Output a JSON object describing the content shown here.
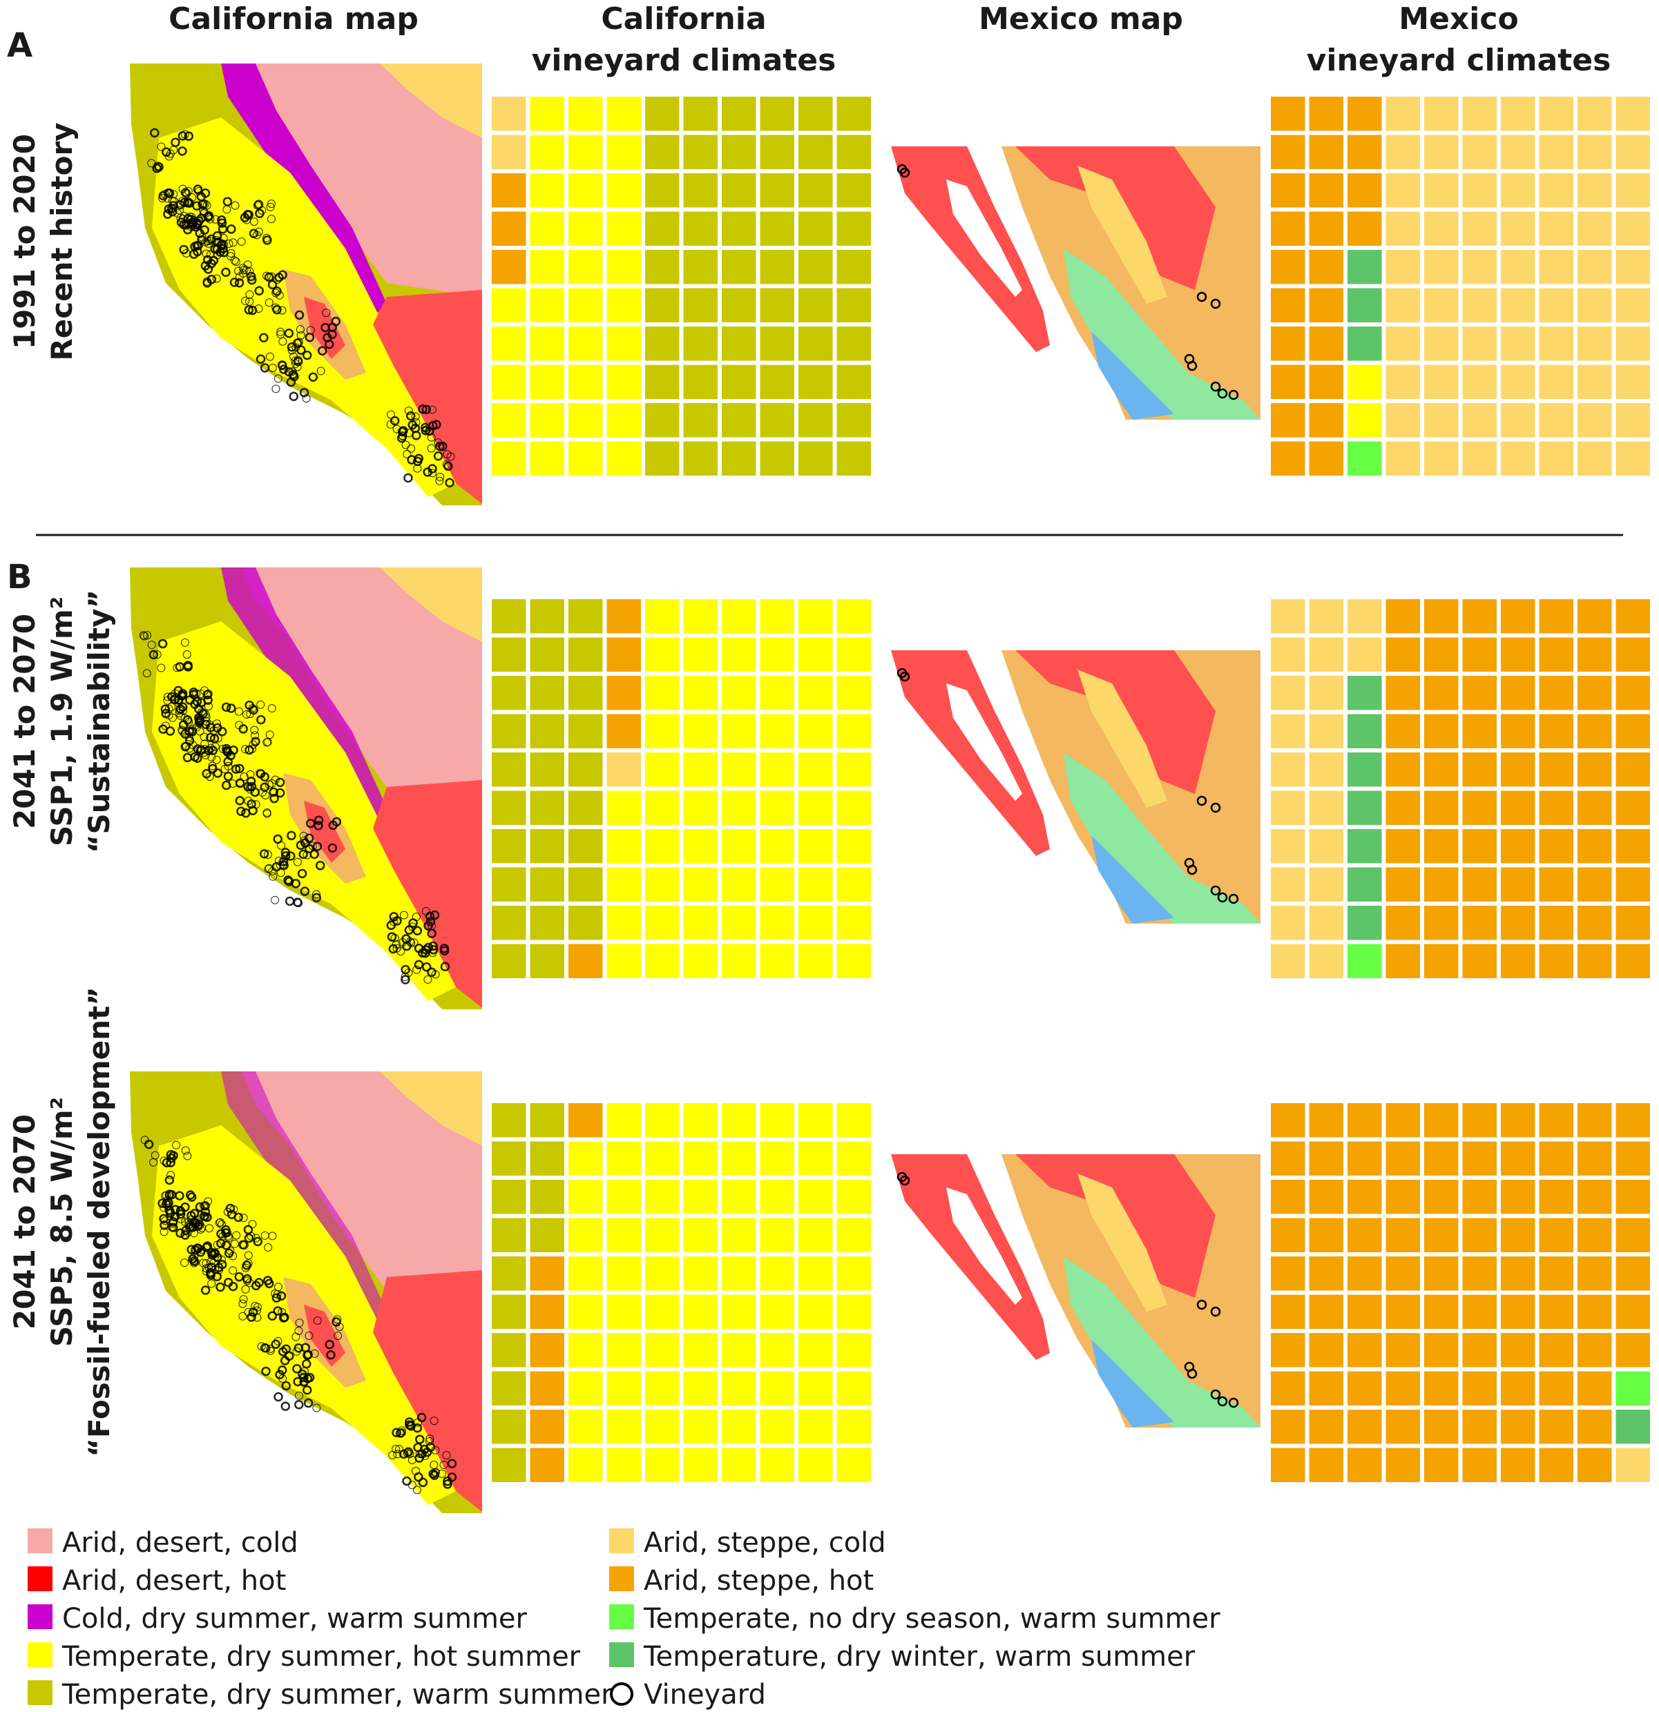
{
  "column_titles": {
    "ca_map": "California map",
    "ca_waffle": [
      "California",
      "vineyard climates"
    ],
    "mx_map": "Mexico map",
    "mx_waffle": [
      "Mexico",
      "vineyard climates"
    ]
  },
  "panel_letters": [
    "A",
    "B"
  ],
  "row_labels": [
    [
      "1991 to 2020",
      "Recent history"
    ],
    [
      "2041 to 2070",
      "SSP1, 1.9 W/m²",
      "“Sustainability”"
    ],
    [
      "2041 to 2070",
      "SSP5, 8.5 W/m²",
      "“Fossil-fueled development”"
    ]
  ],
  "legend": [
    {
      "key": "ADC",
      "label": "Arid, desert, cold",
      "color": "#f7a8a8"
    },
    {
      "key": "ADH",
      "label": "Arid, desert, hot",
      "color": "#ff0000"
    },
    {
      "key": "CDW",
      "label": "Cold, dry summer, warm summer",
      "color": "#cc00cc"
    },
    {
      "key": "TDH",
      "label": "Temperate, dry summer, hot summer",
      "color": "#ffff00"
    },
    {
      "key": "TDW",
      "label": "Temperate, dry summer, warm summer",
      "color": "#c8c800"
    },
    {
      "key": "ASC",
      "label": "Arid, steppe, cold",
      "color": "#fcd86a"
    },
    {
      "key": "ASH",
      "label": "Arid, steppe, hot",
      "color": "#f4a300"
    },
    {
      "key": "TNW",
      "label": "Temperate, no dry season, warm summer",
      "color": "#66ff44"
    },
    {
      "key": "TWW",
      "label": "Temperature, dry winter, warm summer",
      "color": "#5ec46a"
    },
    {
      "key": "VIN",
      "label": "Vineyard",
      "color": "#000000"
    }
  ],
  "map_colors": {
    "ca_land": "#c8c800",
    "ca_inland": "#ffff00",
    "ca_desert_cold": "#f7a8a8",
    "ca_cold_dry": "#cc00cc",
    "ca_steppe_cold": "#fcd86a",
    "ca_desert_hot": "#ff5050",
    "ca_steppe_hot": "#f4b860",
    "mx_desert_hot": "#ff5050",
    "mx_steppe_hot": "#f4b860",
    "mx_steppe_cold": "#fcd86a",
    "mx_temperate_green": "#8ee8a0",
    "mx_blue": "#6ab4f0"
  },
  "chart_data": [
    {
      "type": "waffle",
      "panel": "A",
      "region": "California",
      "period": "1991 to 2020",
      "grid": [
        10,
        10
      ],
      "fill_order": "column-major",
      "counts": {
        "ASC": 2,
        "ASH": 3,
        "TDH": 35,
        "TDW": 60
      }
    },
    {
      "type": "waffle",
      "panel": "A",
      "region": "Mexico",
      "period": "1991 to 2020",
      "grid": [
        10,
        10
      ],
      "fill_order": "column-major",
      "counts": {
        "ASH": 24,
        "TWW": 3,
        "TDH": 2,
        "TNW": 1,
        "ASC": 70
      }
    },
    {
      "type": "waffle",
      "panel": "B",
      "region": "California",
      "period": "2041 to 2070 SSP1",
      "grid": [
        10,
        10
      ],
      "fill_order": "column-major",
      "counts": {
        "TDW": 29,
        "ASH": 5,
        "ASC": 1,
        "TDH": 65
      }
    },
    {
      "type": "waffle",
      "panel": "B",
      "region": "Mexico",
      "period": "2041 to 2070 SSP1",
      "grid": [
        10,
        10
      ],
      "fill_order": "column-major",
      "counts": {
        "ASC": 22,
        "TWW": 7,
        "TNW": 1,
        "ASH": 70
      }
    },
    {
      "type": "waffle",
      "panel": "B",
      "region": "California",
      "period": "2041 to 2070 SSP5",
      "grid": [
        10,
        10
      ],
      "fill_order": "column-major",
      "counts": {
        "TDW": 14,
        "ASH": 7,
        "TDH": 79
      }
    },
    {
      "type": "waffle",
      "panel": "B",
      "region": "Mexico",
      "period": "2041 to 2070 SSP5",
      "grid": [
        10,
        10
      ],
      "fill_order": "column-major",
      "counts": {
        "ASH": 97,
        "TNW": 1,
        "TWW": 1,
        "ASC": 1
      }
    }
  ]
}
